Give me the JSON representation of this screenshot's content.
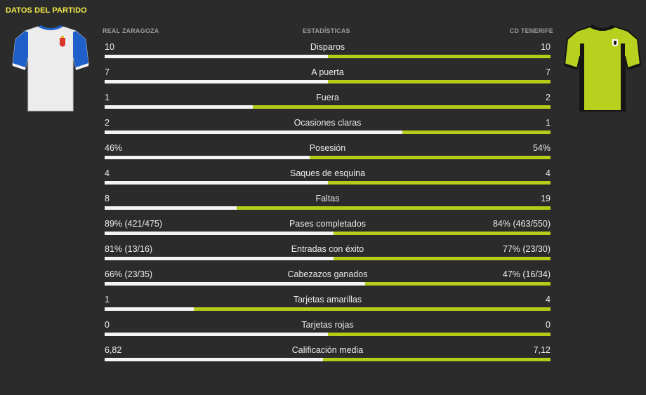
{
  "panel": {
    "title": "DATOS DEL PARTIDO",
    "home_team": "REAL ZARAGOZA",
    "center_header": "ESTADÍSTICAS",
    "away_team": "CD TENERIFE"
  },
  "colors": {
    "accent_yellow": "#f4ec4a",
    "home_bar": "#f4f4f4",
    "away_bar": "#b5cc18",
    "background": "#2b2b2b"
  },
  "stats": [
    {
      "label": "Disparos",
      "home": "10",
      "away": "10",
      "home_share": 0.5
    },
    {
      "label": "A puerta",
      "home": "7",
      "away": "7",
      "home_share": 0.5
    },
    {
      "label": "Fuera",
      "home": "1",
      "away": "2",
      "home_share": 0.333
    },
    {
      "label": "Ocasiones claras",
      "home": "2",
      "away": "1",
      "home_share": 0.667
    },
    {
      "label": "Posesión",
      "home": "46%",
      "away": "54%",
      "home_share": 0.46
    },
    {
      "label": "Saques de esquina",
      "home": "4",
      "away": "4",
      "home_share": 0.5
    },
    {
      "label": "Faltas",
      "home": "8",
      "away": "19",
      "home_share": 0.296
    },
    {
      "label": "Pases completados",
      "home": "89% (421/475)",
      "away": "84% (463/550)",
      "home_share": 0.514
    },
    {
      "label": "Entradas con éxito",
      "home": "81% (13/16)",
      "away": "77% (23/30)",
      "home_share": 0.513
    },
    {
      "label": "Cabezazos ganados",
      "home": "66% (23/35)",
      "away": "47% (16/34)",
      "home_share": 0.584
    },
    {
      "label": "Tarjetas amarillas",
      "home": "1",
      "away": "4",
      "home_share": 0.2
    },
    {
      "label": "Tarjetas rojas",
      "home": "0",
      "away": "0",
      "home_share": 0.5
    },
    {
      "label": "Calificación media",
      "home": "6,82",
      "away": "7,12",
      "home_share": 0.489
    }
  ]
}
